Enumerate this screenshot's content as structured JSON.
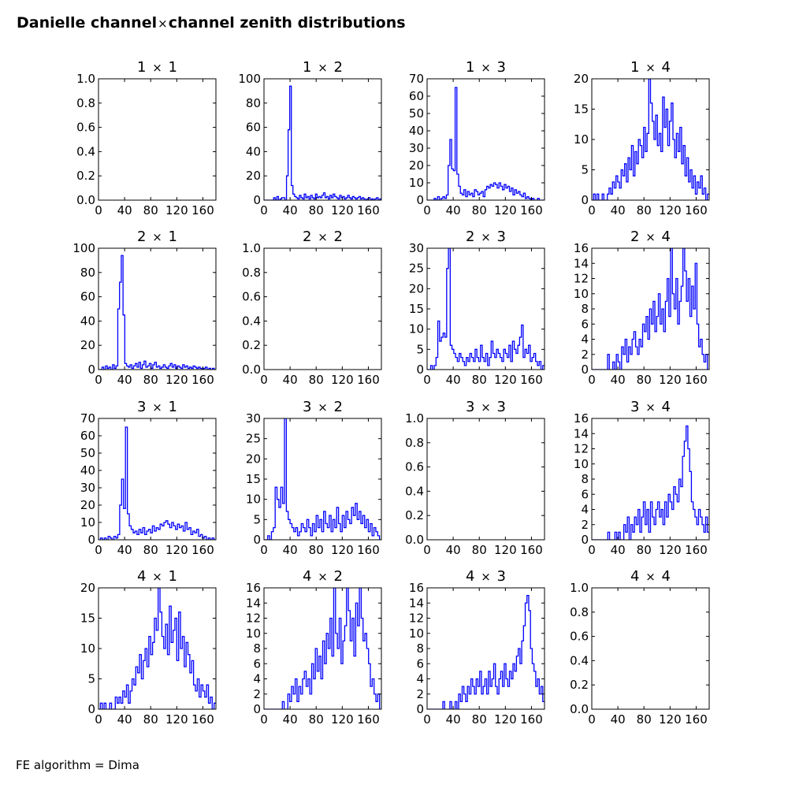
{
  "figure": {
    "title_pre": "Danielle channel",
    "title_times": "×",
    "title_post": "channel zenith distributions",
    "footer": "FE algorithm = Dima",
    "line_color": "#0000ff"
  },
  "chart_data": [
    {
      "type": "line",
      "title": "1  × 1",
      "xlim": [
        0,
        180
      ],
      "ylim": [
        0,
        1.0
      ],
      "xticks": [
        "0",
        "40",
        "80",
        "120",
        "160"
      ],
      "yticks": [
        "0.0",
        "0.2",
        "0.4",
        "0.6",
        "0.8",
        "1.0"
      ],
      "grid": false,
      "series": []
    },
    {
      "type": "line",
      "title": "1  × 2",
      "xlim": [
        0,
        180
      ],
      "ylim": [
        0,
        100
      ],
      "xticks": [
        "0",
        "40",
        "80",
        "120",
        "160"
      ],
      "yticks": [
        "0",
        "20",
        "40",
        "60",
        "80",
        "100"
      ],
      "grid": false,
      "series": [
        {
          "values": [
            0,
            0,
            0,
            0,
            0,
            0,
            2,
            0,
            3,
            0,
            1,
            2,
            2,
            0,
            20,
            58,
            94,
            12,
            5,
            3,
            2,
            1,
            4,
            2,
            1,
            5,
            2,
            3,
            1,
            4,
            2,
            1,
            5,
            2,
            3,
            2,
            4,
            6,
            2,
            3,
            1,
            4,
            2,
            5,
            3,
            2,
            1,
            4,
            2,
            3,
            1,
            2,
            4,
            2,
            1,
            3,
            2,
            1,
            2,
            3,
            1,
            2,
            1,
            0,
            1,
            2,
            0,
            1,
            0,
            1,
            2,
            0,
            1
          ]
        }
      ]
    },
    {
      "type": "line",
      "title": "1  × 3",
      "xlim": [
        0,
        180
      ],
      "ylim": [
        0,
        70
      ],
      "xticks": [
        "0",
        "40",
        "80",
        "120",
        "160"
      ],
      "yticks": [
        "0",
        "10",
        "20",
        "30",
        "40",
        "50",
        "60",
        "70"
      ],
      "grid": false,
      "series": [
        {
          "values": [
            0,
            0,
            0,
            0,
            1,
            0,
            2,
            0,
            1,
            2,
            1,
            3,
            20,
            35,
            18,
            17,
            65,
            15,
            8,
            4,
            3,
            6,
            2,
            5,
            3,
            4,
            2,
            6,
            5,
            3,
            4,
            5,
            2,
            6,
            8,
            7,
            9,
            8,
            10,
            9,
            7,
            10,
            8,
            6,
            9,
            7,
            8,
            5,
            7,
            3,
            6,
            4,
            5,
            3,
            2,
            4,
            1,
            2,
            1,
            0,
            1,
            0,
            0,
            1,
            0,
            0,
            0
          ]
        }
      ]
    },
    {
      "type": "line",
      "title": "1  × 4",
      "xlim": [
        0,
        180
      ],
      "ylim": [
        0,
        20
      ],
      "xticks": [
        "0",
        "40",
        "80",
        "120",
        "160"
      ],
      "yticks": [
        "0",
        "5",
        "10",
        "15",
        "20"
      ],
      "grid": false,
      "series": [
        {
          "values": [
            0,
            1,
            0,
            1,
            0,
            0,
            1,
            0,
            0,
            1,
            2,
            1,
            3,
            2,
            4,
            3,
            2,
            5,
            4,
            6,
            3,
            7,
            5,
            9,
            4,
            8,
            6,
            10,
            9,
            7,
            12,
            8,
            11,
            20,
            16,
            13,
            10,
            14,
            9,
            11,
            8,
            17,
            12,
            15,
            9,
            13,
            16,
            10,
            7,
            11,
            8,
            12,
            6,
            9,
            4,
            7,
            3,
            5,
            2,
            4,
            1,
            3,
            2,
            4,
            1,
            2,
            0,
            1
          ]
        }
      ]
    },
    {
      "type": "line",
      "title": "2  × 1",
      "xlim": [
        0,
        180
      ],
      "ylim": [
        0,
        100
      ],
      "xticks": [
        "0",
        "40",
        "80",
        "120",
        "160"
      ],
      "yticks": [
        "0",
        "20",
        "40",
        "60",
        "80",
        "100"
      ],
      "grid": false,
      "series": [
        {
          "values": [
            0,
            0,
            2,
            0,
            3,
            1,
            2,
            0,
            4,
            1,
            3,
            50,
            72,
            94,
            45,
            5,
            3,
            2,
            4,
            1,
            3,
            5,
            2,
            6,
            1,
            4,
            7,
            2,
            3,
            5,
            1,
            4,
            6,
            2,
            3,
            1,
            2,
            4,
            2,
            1,
            3,
            5,
            2,
            4,
            1,
            3,
            2,
            1,
            4,
            2,
            3,
            1,
            2,
            1,
            3,
            2,
            1,
            2,
            1,
            0,
            1,
            2,
            0,
            1,
            0,
            1,
            0
          ]
        }
      ]
    },
    {
      "type": "line",
      "title": "2  × 2",
      "xlim": [
        0,
        180
      ],
      "ylim": [
        0,
        1.0
      ],
      "xticks": [
        "0",
        "40",
        "80",
        "120",
        "160"
      ],
      "yticks": [
        "0.0",
        "0.2",
        "0.4",
        "0.6",
        "0.8",
        "1.0"
      ],
      "grid": false,
      "series": []
    },
    {
      "type": "line",
      "title": "2  × 3",
      "xlim": [
        0,
        180
      ],
      "ylim": [
        0,
        30
      ],
      "xticks": [
        "0",
        "40",
        "80",
        "120",
        "160"
      ],
      "yticks": [
        "0",
        "5",
        "10",
        "15",
        "20",
        "25",
        "30"
      ],
      "grid": false,
      "series": [
        {
          "values": [
            0,
            0,
            1,
            0,
            1,
            3,
            12,
            7,
            8,
            9,
            8,
            25,
            30,
            6,
            5,
            4,
            3,
            2,
            4,
            3,
            2,
            1,
            3,
            2,
            4,
            3,
            2,
            5,
            3,
            2,
            6,
            3,
            2,
            4,
            1,
            3,
            7,
            4,
            3,
            5,
            4,
            3,
            2,
            5,
            4,
            3,
            6,
            2,
            7,
            5,
            4,
            6,
            8,
            11,
            3,
            5,
            4,
            6,
            2,
            3,
            4,
            2,
            1,
            2,
            0,
            1
          ]
        }
      ]
    },
    {
      "type": "line",
      "title": "2  × 4",
      "xlim": [
        0,
        180
      ],
      "ylim": [
        0,
        16
      ],
      "xticks": [
        "0",
        "40",
        "80",
        "120",
        "160"
      ],
      "yticks": [
        "0",
        "2",
        "4",
        "6",
        "8",
        "10",
        "12",
        "14",
        "16"
      ],
      "grid": false,
      "series": [
        {
          "values": [
            0,
            0,
            0,
            0,
            0,
            0,
            0,
            0,
            0,
            2,
            0,
            0,
            1,
            0,
            2,
            1,
            0,
            3,
            2,
            4,
            1,
            3,
            2,
            4,
            5,
            3,
            2,
            4,
            3,
            6,
            5,
            7,
            4,
            8,
            6,
            9,
            5,
            7,
            10,
            6,
            8,
            5,
            9,
            12,
            7,
            16,
            10,
            8,
            12,
            6,
            9,
            11,
            16,
            13,
            9,
            12,
            7,
            11,
            8,
            14,
            6,
            3,
            4,
            2,
            1,
            2,
            0
          ]
        }
      ]
    },
    {
      "type": "line",
      "title": "3  × 1",
      "xlim": [
        0,
        180
      ],
      "ylim": [
        0,
        70
      ],
      "xticks": [
        "0",
        "40",
        "80",
        "120",
        "160"
      ],
      "yticks": [
        "0",
        "10",
        "20",
        "30",
        "40",
        "50",
        "60",
        "70"
      ],
      "grid": false,
      "series": [
        {
          "values": [
            0,
            1,
            0,
            1,
            0,
            2,
            1,
            0,
            2,
            1,
            3,
            20,
            35,
            18,
            65,
            15,
            8,
            6,
            4,
            5,
            3,
            6,
            4,
            7,
            3,
            5,
            6,
            4,
            8,
            5,
            7,
            6,
            9,
            8,
            10,
            11,
            9,
            7,
            10,
            8,
            6,
            9,
            7,
            8,
            5,
            10,
            6,
            7,
            3,
            5,
            4,
            6,
            2,
            3,
            1,
            2,
            0,
            1,
            0,
            1,
            0
          ]
        }
      ]
    },
    {
      "type": "line",
      "title": "3  × 2",
      "xlim": [
        0,
        180
      ],
      "ylim": [
        0,
        30
      ],
      "xticks": [
        "0",
        "40",
        "80",
        "120",
        "160"
      ],
      "yticks": [
        "0",
        "5",
        "10",
        "15",
        "20",
        "25",
        "30"
      ],
      "grid": false,
      "series": [
        {
          "values": [
            0,
            0,
            1,
            0,
            2,
            3,
            13,
            10,
            8,
            13,
            9,
            30,
            7,
            5,
            4,
            3,
            2,
            3,
            1,
            2,
            4,
            3,
            2,
            5,
            3,
            1,
            4,
            2,
            6,
            3,
            5,
            2,
            7,
            4,
            3,
            6,
            2,
            5,
            3,
            8,
            4,
            2,
            6,
            3,
            7,
            5,
            4,
            8,
            6,
            9,
            5,
            7,
            4,
            6,
            3,
            5,
            2,
            4,
            1,
            3,
            2,
            1,
            0
          ]
        }
      ]
    },
    {
      "type": "line",
      "title": "3  × 3",
      "xlim": [
        0,
        180
      ],
      "ylim": [
        0,
        1.0
      ],
      "xticks": [
        "0",
        "40",
        "80",
        "120",
        "160"
      ],
      "yticks": [
        "0.0",
        "0.2",
        "0.4",
        "0.6",
        "0.8",
        "1.0"
      ],
      "grid": false,
      "series": []
    },
    {
      "type": "line",
      "title": "3  × 4",
      "xlim": [
        0,
        180
      ],
      "ylim": [
        0,
        16
      ],
      "xticks": [
        "0",
        "40",
        "80",
        "120",
        "160"
      ],
      "yticks": [
        "0",
        "2",
        "4",
        "6",
        "8",
        "10",
        "12",
        "14",
        "16"
      ],
      "grid": false,
      "series": [
        {
          "values": [
            0,
            0,
            0,
            0,
            0,
            0,
            0,
            0,
            0,
            1,
            0,
            0,
            0,
            1,
            0,
            1,
            0,
            0,
            2,
            1,
            3,
            0,
            2,
            1,
            3,
            2,
            4,
            1,
            3,
            5,
            2,
            4,
            1,
            5,
            3,
            2,
            4,
            5,
            3,
            4,
            2,
            5,
            3,
            6,
            5,
            4,
            7,
            6,
            5,
            8,
            7,
            11,
            13,
            15,
            12,
            9,
            5,
            4,
            3,
            2,
            4,
            3,
            2,
            1,
            3,
            1
          ]
        }
      ]
    },
    {
      "type": "line",
      "title": "4  × 1",
      "xlim": [
        0,
        180
      ],
      "ylim": [
        0,
        20
      ],
      "xticks": [
        "0",
        "40",
        "80",
        "120",
        "160"
      ],
      "yticks": [
        "0",
        "5",
        "10",
        "15",
        "20"
      ],
      "grid": false,
      "series": [
        {
          "values": [
            0,
            1,
            0,
            1,
            0,
            0,
            1,
            0,
            0,
            2,
            1,
            2,
            1,
            3,
            2,
            4,
            1,
            3,
            5,
            4,
            7,
            6,
            9,
            5,
            8,
            10,
            7,
            12,
            9,
            11,
            15,
            13,
            20,
            16,
            12,
            10,
            14,
            9,
            17,
            11,
            13,
            15,
            8,
            16,
            10,
            12,
            7,
            11,
            9,
            6,
            8,
            4,
            3,
            5,
            2,
            4,
            3,
            2,
            4,
            1,
            2,
            0,
            1
          ]
        }
      ]
    },
    {
      "type": "line",
      "title": "4  × 2",
      "xlim": [
        0,
        180
      ],
      "ylim": [
        0,
        16
      ],
      "xticks": [
        "0",
        "40",
        "80",
        "120",
        "160"
      ],
      "yticks": [
        "0",
        "2",
        "4",
        "6",
        "8",
        "10",
        "12",
        "14",
        "16"
      ],
      "grid": false,
      "series": [
        {
          "values": [
            0,
            0,
            0,
            0,
            0,
            0,
            0,
            0,
            0,
            0,
            1,
            0,
            0,
            2,
            1,
            3,
            2,
            4,
            1,
            3,
            2,
            4,
            5,
            3,
            4,
            2,
            6,
            4,
            8,
            5,
            7,
            4,
            9,
            6,
            10,
            8,
            12,
            7,
            16,
            10,
            8,
            12,
            6,
            9,
            11,
            16,
            13,
            9,
            12,
            7,
            14,
            11,
            16,
            12,
            9,
            10,
            8,
            6,
            3,
            4,
            2,
            1,
            2,
            0
          ]
        }
      ]
    },
    {
      "type": "line",
      "title": "4  × 3",
      "xlim": [
        0,
        180
      ],
      "ylim": [
        0,
        16
      ],
      "xticks": [
        "0",
        "40",
        "80",
        "120",
        "160"
      ],
      "yticks": [
        "0",
        "2",
        "4",
        "6",
        "8",
        "10",
        "12",
        "14",
        "16"
      ],
      "grid": false,
      "series": [
        {
          "values": [
            0,
            0,
            0,
            0,
            0,
            0,
            0,
            0,
            0,
            1,
            0,
            0,
            0,
            1,
            0,
            0,
            1,
            0,
            2,
            1,
            3,
            2,
            1,
            3,
            2,
            4,
            3,
            2,
            4,
            3,
            5,
            2,
            3,
            4,
            2,
            5,
            3,
            4,
            6,
            3,
            2,
            4,
            5,
            3,
            6,
            4,
            3,
            5,
            4,
            6,
            5,
            7,
            8,
            6,
            9,
            11,
            14,
            15,
            13,
            8,
            6,
            5,
            3,
            4,
            2,
            3,
            1
          ]
        }
      ]
    },
    {
      "type": "line",
      "title": "4  × 4",
      "xlim": [
        0,
        180
      ],
      "ylim": [
        0,
        1.0
      ],
      "xticks": [
        "0",
        "40",
        "80",
        "120",
        "160"
      ],
      "yticks": [
        "0.0",
        "0.2",
        "0.4",
        "0.6",
        "0.8",
        "1.0"
      ],
      "grid": false,
      "series": []
    }
  ]
}
